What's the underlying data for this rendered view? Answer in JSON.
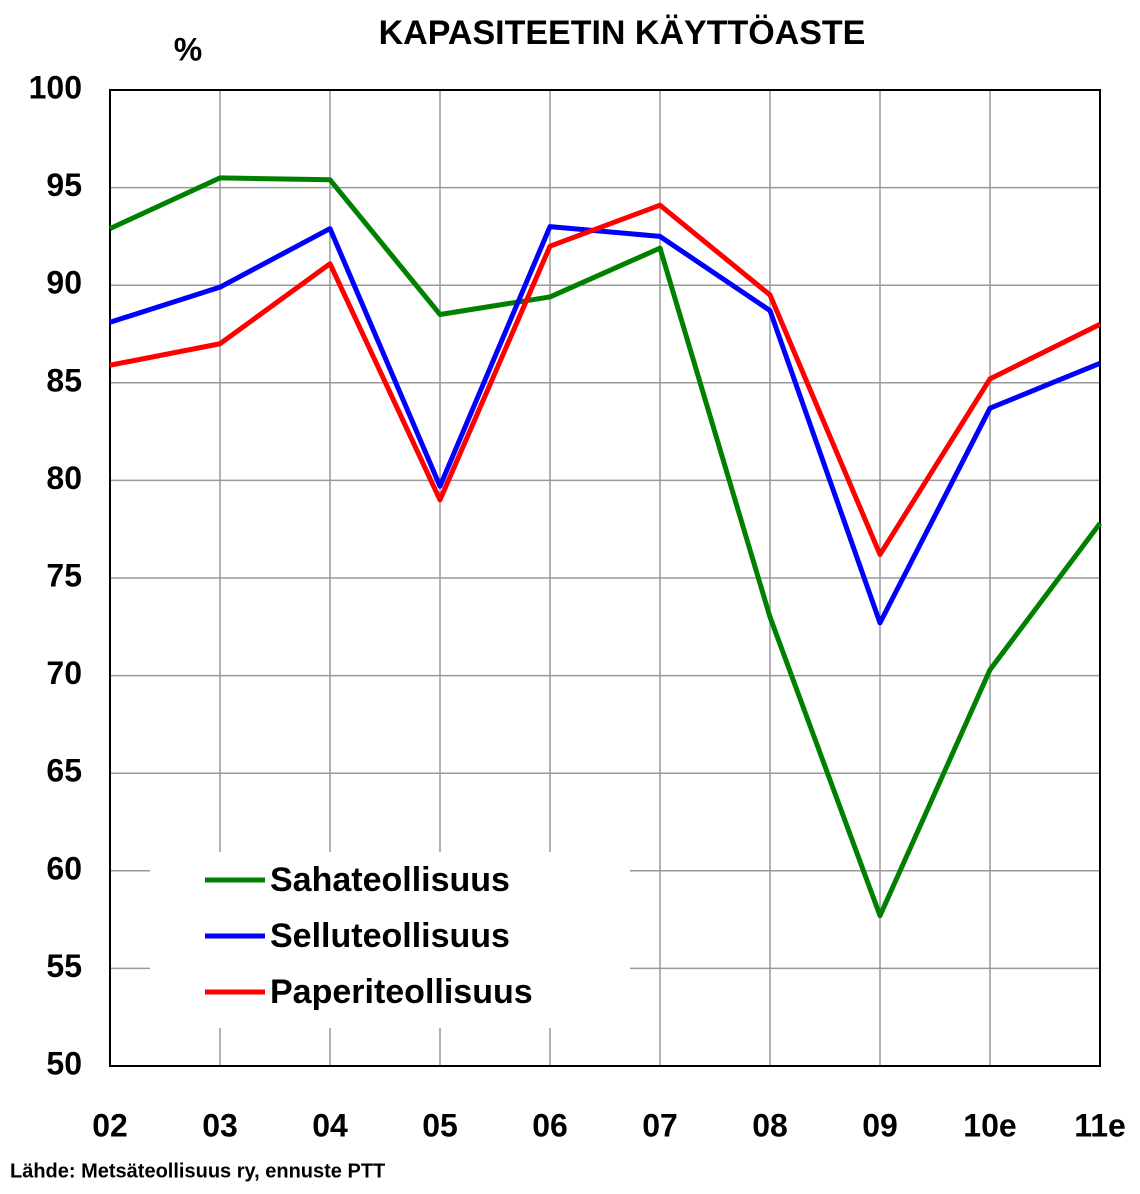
{
  "chart_data": {
    "type": "line",
    "title": "KAPASITEETIN KÄYTTÖASTE",
    "y_label": "%",
    "source": "Lähde: Metsäteollisuus ry, ennuste PTT",
    "categories": [
      "02",
      "03",
      "04",
      "05",
      "06",
      "07",
      "08",
      "09",
      "10e",
      "11e"
    ],
    "series": [
      {
        "name": "Sahateollisuus",
        "color": "#008000",
        "values": [
          92.9,
          95.5,
          95.4,
          88.5,
          89.4,
          91.9,
          73.0,
          57.7,
          70.3,
          77.8
        ]
      },
      {
        "name": "Selluteollisuus",
        "color": "#0000ff",
        "values": [
          88.1,
          89.9,
          92.9,
          79.7,
          93.0,
          92.5,
          88.7,
          72.7,
          83.7,
          86.0
        ]
      },
      {
        "name": "Paperiteollisuus",
        "color": "#ff0000",
        "values": [
          85.9,
          87.0,
          91.1,
          79.0,
          92.0,
          94.1,
          89.5,
          76.2,
          85.2,
          88.0
        ]
      }
    ],
    "ylim": [
      50,
      100
    ],
    "yticks": [
      50,
      55,
      60,
      65,
      70,
      75,
      80,
      85,
      90,
      95,
      100
    ],
    "grid": true,
    "legend": "lower left"
  }
}
